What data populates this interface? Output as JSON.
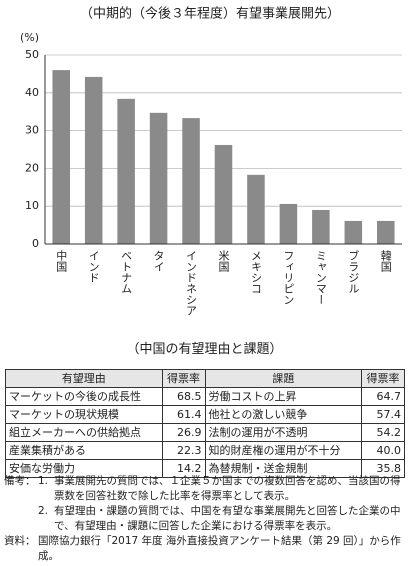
{
  "chart_data": {
    "type": "bar",
    "title": "（中期的（今後３年程度）有望事業展開先）",
    "y_label": "(%)",
    "categories": [
      "中国",
      "インド",
      "ベトナム",
      "タイ",
      "インドネシア",
      "米国",
      "メキシコ",
      "フィリピン",
      "ミャンマー",
      "ブラジル",
      "韓国"
    ],
    "values": [
      46.0,
      44.2,
      38.4,
      34.7,
      33.3,
      26.2,
      18.3,
      10.6,
      9.0,
      6.1,
      6.1
    ],
    "color": "#8a8a8a",
    "ylim": [
      0,
      50
    ],
    "yticks": [
      0,
      10,
      20,
      30,
      40,
      50
    ],
    "grid": true
  },
  "table": {
    "title": "（中国の有望理由と課題）",
    "header": [
      "有望理由",
      "得票率",
      "課題",
      "得票率"
    ],
    "rows": [
      [
        "マーケットの今後の成長性",
        "68.5",
        "労働コストの上昇",
        "64.7"
      ],
      [
        "マーケットの現状規模",
        "61.4",
        "他社との激しい競争",
        "57.4"
      ],
      [
        "組立メーカーへの供給拠点",
        "26.9",
        "法制の運用が不透明",
        "54.2"
      ],
      [
        "産業集積がある",
        "22.3",
        "知的財産権の運用が不十分",
        "40.0"
      ],
      [
        "安価な労働力",
        "14.2",
        "為替規制・送金規制",
        "35.8"
      ]
    ]
  },
  "notes": {
    "label": "備考：",
    "items": [
      {
        "num": "1.",
        "text": "事業展開先の質問では、１企業５か国までの複数回答を認め、当該国の得票数を回答社数で除した比率を得票率として表示。"
      },
      {
        "num": "2.",
        "text": "有望理由・課題の質問では、中国を有望な事業展開先と回答した企業の中で、有望理由・課題に回答した企業における得票率を表示。"
      }
    ],
    "source_label": "資料：",
    "source": "国際協力銀行「2017 年度 海外直接投資アンケート結果（第 29 回）」から作成。"
  }
}
